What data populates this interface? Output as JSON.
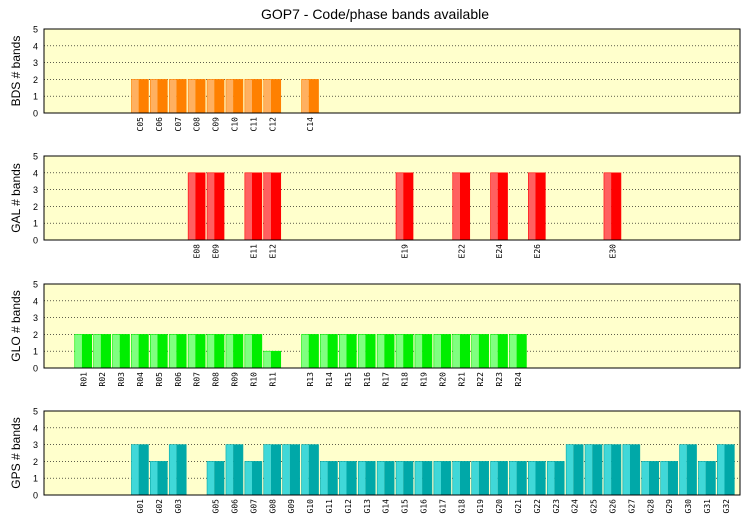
{
  "title": "GOP7 - Code/phase bands available",
  "chart_data": [
    {
      "type": "bar",
      "ylabel": "BDS # bands",
      "ylim": [
        0,
        5
      ],
      "grid": true,
      "colors": {
        "light": "#ffb060",
        "dark": "#ff8000"
      },
      "categories": [
        "C05",
        "C06",
        "C07",
        "C08",
        "C09",
        "C10",
        "C11",
        "C12",
        "C14"
      ],
      "values": [
        2,
        2,
        2,
        2,
        2,
        2,
        2,
        2,
        2
      ]
    },
    {
      "type": "bar",
      "ylabel": "GAL # bands",
      "ylim": [
        0,
        5
      ],
      "grid": true,
      "colors": {
        "light": "#ff6060",
        "dark": "#ff0000"
      },
      "categories": [
        "E08",
        "E09",
        "E11",
        "E12",
        "E19",
        "E22",
        "E24",
        "E26",
        "E30"
      ],
      "values": [
        4,
        4,
        4,
        4,
        4,
        4,
        4,
        4,
        4
      ]
    },
    {
      "type": "bar",
      "ylabel": "GLO # bands",
      "ylim": [
        0,
        5
      ],
      "grid": true,
      "colors": {
        "light": "#80ff80",
        "dark": "#00ee00"
      },
      "categories": [
        "R01",
        "R02",
        "R03",
        "R04",
        "R05",
        "R06",
        "R07",
        "R08",
        "R09",
        "R10",
        "R11",
        "R13",
        "R14",
        "R15",
        "R16",
        "R17",
        "R18",
        "R19",
        "R20",
        "R21",
        "R22",
        "R23",
        "R24"
      ],
      "values": [
        2,
        2,
        2,
        2,
        2,
        2,
        2,
        2,
        2,
        2,
        1,
        2,
        2,
        2,
        2,
        2,
        2,
        2,
        2,
        2,
        2,
        2,
        2
      ]
    },
    {
      "type": "bar",
      "ylabel": "GPS # bands",
      "ylim": [
        0,
        5
      ],
      "grid": true,
      "colors": {
        "light": "#40d8d8",
        "dark": "#00a8a8"
      },
      "categories": [
        "G01",
        "G02",
        "G03",
        "G05",
        "G06",
        "G07",
        "G08",
        "G09",
        "G10",
        "G11",
        "G12",
        "G13",
        "G14",
        "G15",
        "G16",
        "G17",
        "G18",
        "G19",
        "G20",
        "G21",
        "G22",
        "G23",
        "G24",
        "G25",
        "G26",
        "G27",
        "G28",
        "G29",
        "G30",
        "G31",
        "G32"
      ],
      "values": [
        3,
        2,
        3,
        2,
        3,
        2,
        3,
        3,
        3,
        2,
        2,
        2,
        2,
        2,
        2,
        2,
        2,
        2,
        2,
        2,
        2,
        2,
        3,
        3,
        3,
        3,
        2,
        2,
        3,
        2,
        3
      ]
    }
  ]
}
